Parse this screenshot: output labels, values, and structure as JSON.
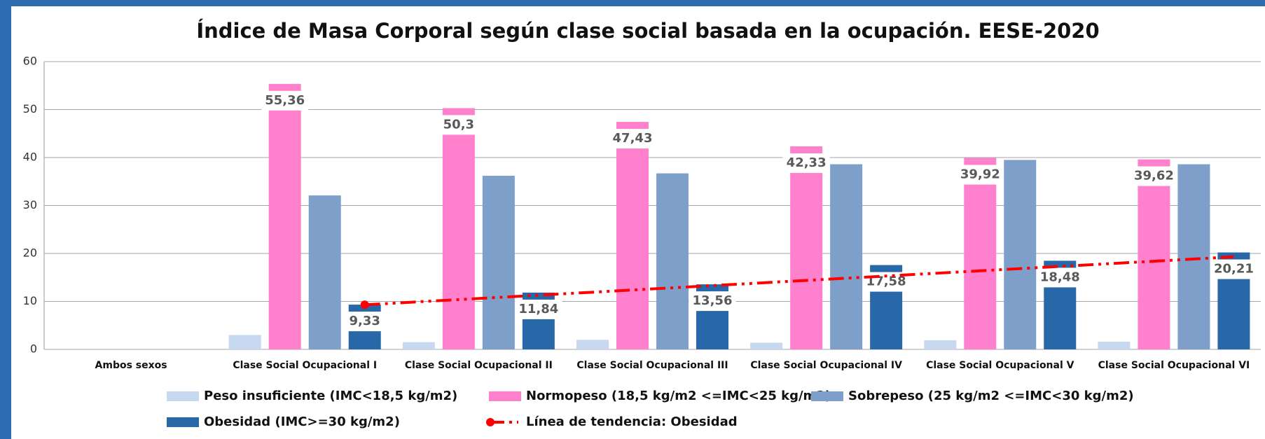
{
  "chart_data": {
    "type": "bar",
    "title": "Índice de Masa Corporal según clase social basada en la ocupación. EESE-2020",
    "categories": [
      "Ambos sexos",
      "Clase Social Ocupacional I",
      "Clase Social Ocupacional II",
      "Clase Social Ocupacional III",
      "Clase Social Ocupacional IV",
      "Clase Social Ocupacional V",
      "Clase Social Ocupacional VI"
    ],
    "series": [
      {
        "name": "Peso insuficiente (IMC<18,5 kg/m2)",
        "color": "#c6d9f0",
        "values": [
          null,
          3.0,
          1.5,
          2.0,
          1.4,
          1.9,
          1.6
        ]
      },
      {
        "name": "Normopeso (18,5 kg/m2 <=IMC<25 kg/m2)",
        "color": "#ff80cc",
        "values": [
          null,
          55.36,
          50.3,
          47.43,
          42.33,
          39.92,
          39.62
        ],
        "value_labels": [
          null,
          "55,36",
          "50,3",
          "47,43",
          "42,33",
          "39,92",
          "39,62"
        ]
      },
      {
        "name": "Sobrepeso (25 kg/m2 <=IMC<30 kg/m2)",
        "color": "#7f9fcb",
        "values": [
          null,
          32.1,
          36.2,
          36.7,
          38.6,
          39.5,
          38.6
        ]
      },
      {
        "name": "Obesidad (IMC>=30 kg/m2)",
        "color": "#2868a8",
        "values": [
          null,
          9.33,
          11.84,
          13.56,
          17.58,
          18.48,
          20.21
        ],
        "value_labels": [
          null,
          "9,33",
          "11,84",
          "13,56",
          "17,58",
          "18,48",
          "20,21"
        ]
      }
    ],
    "trend": {
      "name": "Línea de tendencia: Obesidad",
      "color": "#ff0000",
      "values": [
        null,
        9.3,
        11.3,
        13.3,
        15.3,
        17.3,
        19.3
      ]
    },
    "ylim": [
      0,
      60
    ],
    "yticks": [
      0,
      10,
      20,
      30,
      40,
      50,
      60
    ],
    "grid": true
  }
}
